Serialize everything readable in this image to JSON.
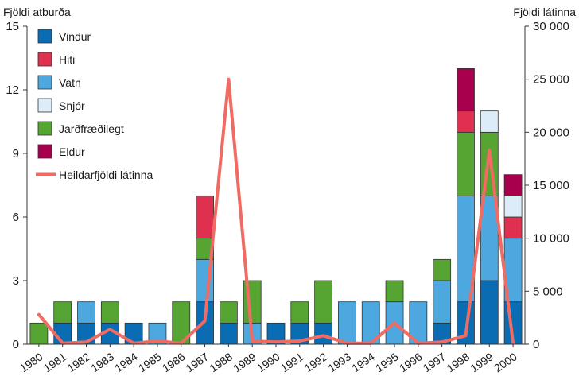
{
  "chart_data": {
    "type": "bar",
    "stacked": true,
    "ylabel_left": "Fjöldi atburða",
    "ylabel_right": "Fjöldi látinna",
    "ylim_left": [
      0,
      15
    ],
    "ylim_right": [
      0,
      30000
    ],
    "yticks_left": [
      0,
      3,
      6,
      9,
      12,
      15
    ],
    "yticks_right": [
      0,
      5000,
      10000,
      15000,
      20000,
      25000,
      30000
    ],
    "yticks_right_labels": [
      "0",
      "5 000",
      "10 000",
      "15 000",
      "20 000",
      "25 000",
      "30 000"
    ],
    "grid": false,
    "legend_position": "top-left",
    "categories": [
      "1980",
      "1981",
      "1982",
      "1983",
      "1984",
      "1985",
      "1986",
      "1987",
      "1988",
      "1989",
      "1990",
      "1991",
      "1992",
      "1993",
      "1994",
      "1995",
      "1996",
      "1997",
      "1998",
      "1999",
      "2000"
    ],
    "series": [
      {
        "name": "Vindur",
        "color": "#0a6cb3",
        "values": [
          0,
          1,
          1,
          1,
          1,
          0,
          0,
          2,
          1,
          0,
          1,
          1,
          1,
          0,
          0,
          0,
          0,
          1,
          2,
          3,
          2
        ]
      },
      {
        "name": "Vatn",
        "color": "#4da8e0",
        "values": [
          0,
          0,
          1,
          0,
          0,
          1,
          0,
          2,
          0,
          1,
          0,
          0,
          0,
          2,
          2,
          2,
          2,
          2,
          5,
          4,
          3
        ]
      },
      {
        "name": "Jarðfræðilegt",
        "color": "#56a532",
        "values": [
          1,
          1,
          0,
          1,
          0,
          0,
          2,
          1,
          1,
          2,
          0,
          1,
          2,
          0,
          0,
          1,
          0,
          1,
          3,
          3,
          0
        ]
      },
      {
        "name": "Hiti",
        "color": "#e03050",
        "values": [
          0,
          0,
          0,
          0,
          0,
          0,
          0,
          2,
          0,
          0,
          0,
          0,
          0,
          0,
          0,
          0,
          0,
          0,
          1,
          0,
          1
        ]
      },
      {
        "name": "Snjór",
        "color": "#dcedf9",
        "values": [
          0,
          0,
          0,
          0,
          0,
          0,
          0,
          0,
          0,
          0,
          0,
          0,
          0,
          0,
          0,
          0,
          0,
          0,
          0,
          1,
          1
        ]
      },
      {
        "name": "Eldur",
        "color": "#a8004c",
        "values": [
          0,
          0,
          0,
          0,
          0,
          0,
          0,
          0,
          0,
          0,
          0,
          0,
          0,
          0,
          0,
          0,
          0,
          0,
          2,
          0,
          1
        ]
      }
    ],
    "line_series": {
      "name": "Heildarfjöldi látinna",
      "color": "#ef6b63",
      "axis": "right",
      "values": [
        2800,
        100,
        200,
        1400,
        100,
        300,
        100,
        2200,
        25000,
        300,
        200,
        300,
        800,
        100,
        100,
        2000,
        100,
        200,
        800,
        18300,
        100
      ]
    },
    "legend_order": [
      "Vindur",
      "Hiti",
      "Vatn",
      "Snjór",
      "Jarðfræðilegt",
      "Eldur",
      "Heildarfjöldi látinna"
    ]
  }
}
